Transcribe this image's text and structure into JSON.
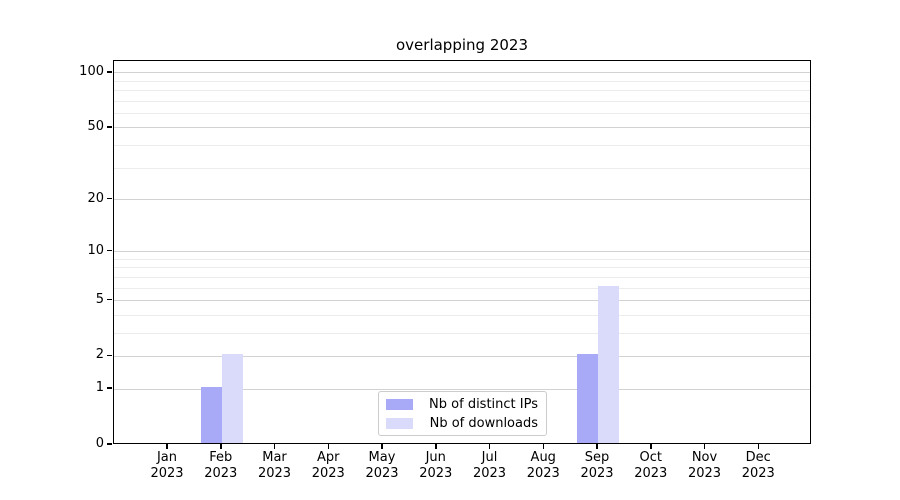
{
  "title": "overlapping 2023",
  "chart_data": {
    "type": "bar",
    "title": "overlapping 2023",
    "categories": [
      "Jan 2023",
      "Feb 2023",
      "Mar 2023",
      "Apr 2023",
      "May 2023",
      "Jun 2023",
      "Jul 2023",
      "Aug 2023",
      "Sep 2023",
      "Oct 2023",
      "Nov 2023",
      "Dec 2023"
    ],
    "series": [
      {
        "name": "Nb of distinct IPs",
        "color": "#a8aaf7",
        "values": [
          0,
          1,
          0,
          0,
          0,
          0,
          0,
          0,
          2,
          0,
          0,
          0
        ]
      },
      {
        "name": "Nb of downloads",
        "color": "#dadbfa",
        "values": [
          0,
          2,
          0,
          0,
          0,
          0,
          0,
          0,
          6,
          0,
          0,
          0
        ]
      }
    ],
    "xlabel": "",
    "ylabel": "",
    "y_scale": "log1p",
    "y_major_ticks": [
      0,
      1,
      2,
      5,
      10,
      20,
      50,
      100
    ],
    "y_minor_gridlines": [
      3,
      4,
      6,
      7,
      8,
      9,
      30,
      40,
      60,
      70,
      80,
      90
    ],
    "ylim": [
      0,
      116
    ],
    "grid": "horizontal",
    "legend_position": "lower-center",
    "bar_mode": "grouped-adjacent"
  },
  "colors": {
    "axis": "#000000",
    "grid_major": "#d2d2d2",
    "grid_minor": "#ececec",
    "background": "#ffffff"
  }
}
